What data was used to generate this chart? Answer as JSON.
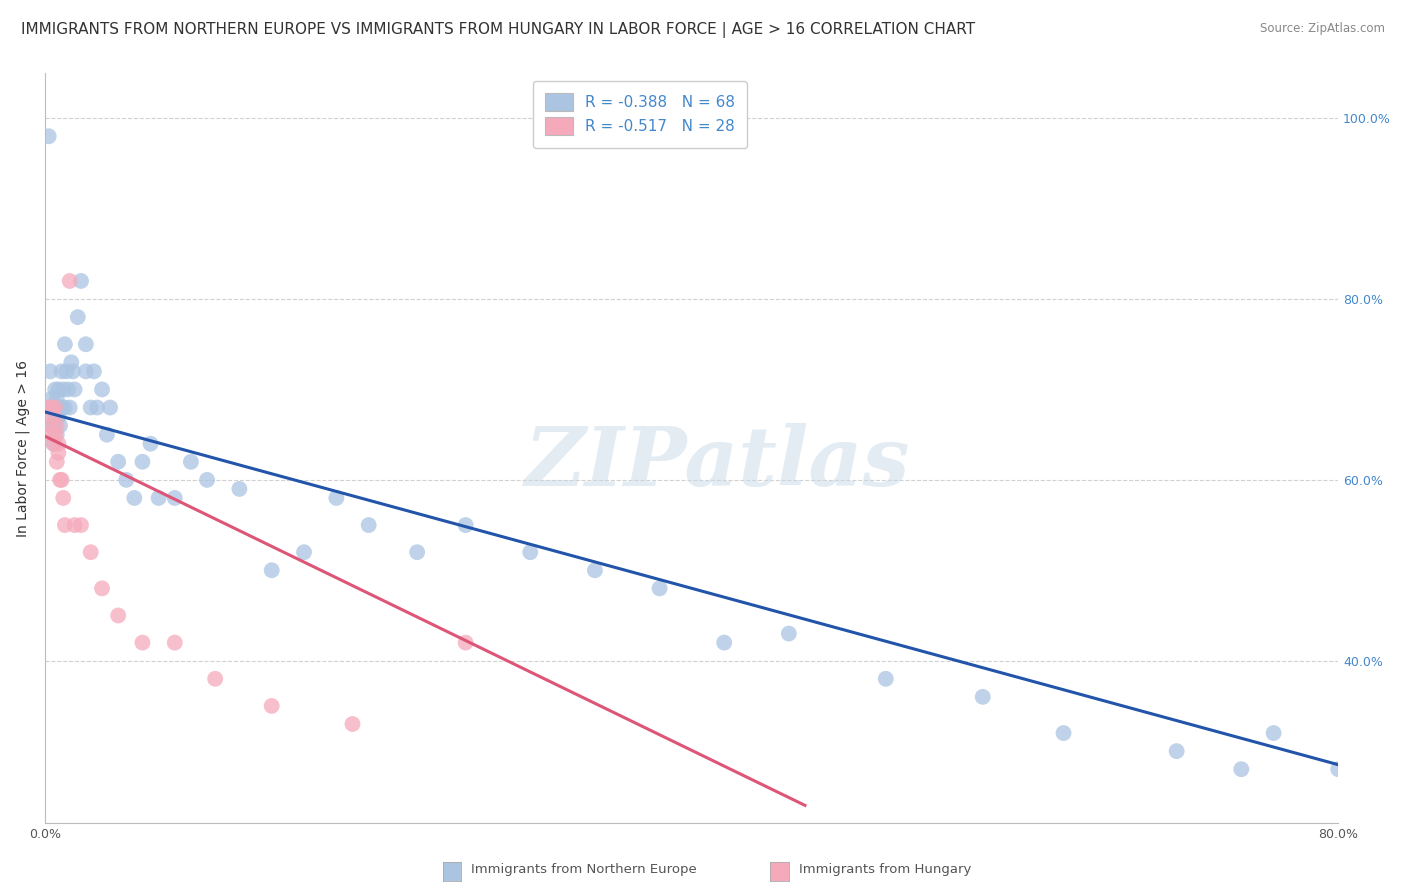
{
  "title": "IMMIGRANTS FROM NORTHERN EUROPE VS IMMIGRANTS FROM HUNGARY IN LABOR FORCE | AGE > 16 CORRELATION CHART",
  "source": "Source: ZipAtlas.com",
  "ylabel": "In Labor Force | Age > 16",
  "blue_label": "Immigrants from Northern Europe",
  "pink_label": "Immigrants from Hungary",
  "blue_R": -0.388,
  "blue_N": 68,
  "pink_R": -0.517,
  "pink_N": 28,
  "blue_color": "#aac4e2",
  "pink_color": "#f5aabb",
  "blue_line_color": "#2255aa",
  "pink_line_color": "#dd5577",
  "legend_text_color": "#4488cc",
  "xlim": [
    0.0,
    0.8
  ],
  "ylim": [
    0.22,
    1.05
  ],
  "yticks_right": [
    0.4,
    0.6,
    0.8,
    1.0
  ],
  "ytick_labels_right": [
    "40.0%",
    "60.0%",
    "80.0%",
    "100.0%"
  ],
  "blue_x": [
    0.002,
    0.003,
    0.003,
    0.004,
    0.004,
    0.004,
    0.005,
    0.005,
    0.005,
    0.006,
    0.006,
    0.006,
    0.007,
    0.007,
    0.007,
    0.008,
    0.008,
    0.009,
    0.009,
    0.01,
    0.01,
    0.011,
    0.012,
    0.012,
    0.013,
    0.014,
    0.015,
    0.016,
    0.017,
    0.018,
    0.02,
    0.022,
    0.025,
    0.025,
    0.028,
    0.03,
    0.032,
    0.035,
    0.038,
    0.04,
    0.045,
    0.05,
    0.055,
    0.06,
    0.065,
    0.07,
    0.08,
    0.09,
    0.1,
    0.12,
    0.14,
    0.16,
    0.18,
    0.2,
    0.23,
    0.26,
    0.3,
    0.34,
    0.38,
    0.42,
    0.46,
    0.52,
    0.58,
    0.63,
    0.7,
    0.74,
    0.76,
    0.8
  ],
  "blue_y": [
    0.98,
    0.68,
    0.72,
    0.68,
    0.66,
    0.69,
    0.68,
    0.66,
    0.64,
    0.68,
    0.7,
    0.67,
    0.69,
    0.65,
    0.68,
    0.67,
    0.7,
    0.66,
    0.68,
    0.72,
    0.68,
    0.7,
    0.75,
    0.68,
    0.72,
    0.7,
    0.68,
    0.73,
    0.72,
    0.7,
    0.78,
    0.82,
    0.72,
    0.75,
    0.68,
    0.72,
    0.68,
    0.7,
    0.65,
    0.68,
    0.62,
    0.6,
    0.58,
    0.62,
    0.64,
    0.58,
    0.58,
    0.62,
    0.6,
    0.59,
    0.5,
    0.52,
    0.58,
    0.55,
    0.52,
    0.55,
    0.52,
    0.5,
    0.48,
    0.42,
    0.43,
    0.38,
    0.36,
    0.32,
    0.3,
    0.28,
    0.32,
    0.28
  ],
  "pink_x": [
    0.002,
    0.003,
    0.004,
    0.004,
    0.005,
    0.005,
    0.006,
    0.006,
    0.007,
    0.007,
    0.008,
    0.008,
    0.009,
    0.01,
    0.011,
    0.012,
    0.015,
    0.018,
    0.022,
    0.028,
    0.035,
    0.045,
    0.06,
    0.08,
    0.105,
    0.14,
    0.19,
    0.26
  ],
  "pink_y": [
    0.68,
    0.66,
    0.68,
    0.65,
    0.64,
    0.67,
    0.65,
    0.68,
    0.62,
    0.66,
    0.64,
    0.63,
    0.6,
    0.6,
    0.58,
    0.55,
    0.82,
    0.55,
    0.55,
    0.52,
    0.48,
    0.45,
    0.42,
    0.42,
    0.38,
    0.35,
    0.33,
    0.42
  ],
  "blue_line_x": [
    0.0,
    0.8
  ],
  "blue_line_y": [
    0.675,
    0.285
  ],
  "pink_line_x": [
    0.0,
    0.47
  ],
  "pink_line_y": [
    0.648,
    0.24
  ],
  "background_color": "#ffffff",
  "grid_color": "#cccccc",
  "watermark": "ZIPatlas",
  "title_fontsize": 11,
  "axis_label_fontsize": 10,
  "tick_fontsize": 9,
  "legend_fontsize": 11
}
